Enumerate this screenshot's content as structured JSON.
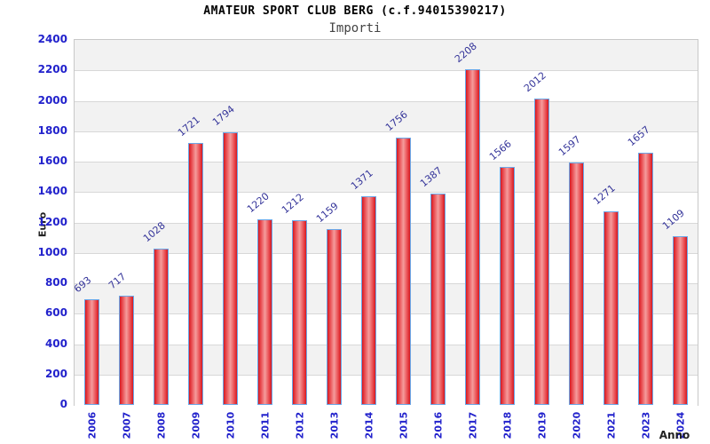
{
  "chart_data": {
    "type": "bar",
    "title": "AMATEUR SPORT CLUB BERG (c.f.94015390217)",
    "subtitle": "Importi",
    "xlabel": "Anno",
    "ylabel": "Euro",
    "categories": [
      "2006",
      "2007",
      "2008",
      "2009",
      "2010",
      "2011",
      "2012",
      "2013",
      "2014",
      "2015",
      "2016",
      "2017",
      "2018",
      "2019",
      "2020",
      "2021",
      "2023",
      "2024"
    ],
    "values": [
      693,
      717,
      1028,
      1721,
      1794,
      1220,
      1212,
      1159,
      1371,
      1756,
      1387,
      2208,
      1566,
      2012,
      1597,
      1271,
      1657,
      1109
    ],
    "ylim": [
      0,
      2400
    ],
    "ytick_step": 200,
    "y_ticks": [
      0,
      200,
      400,
      600,
      800,
      1000,
      1200,
      1400,
      1600,
      1800,
      2000,
      2200,
      2400
    ],
    "data_labels": true,
    "legend": "none",
    "grid": "horizontal-bands",
    "colors": {
      "bar_edge": "#d51820",
      "bar_center": "#f59c9c",
      "bar_border": "#6aa7e8",
      "tick_label": "#2222cc",
      "value_label": "#333399",
      "band_gray": "#f2f2f2",
      "band_white": "#ffffff",
      "gridline": "#d8d8d8",
      "plot_border": "#c8c8c8",
      "title": "#000000",
      "subtitle": "#444444",
      "axis_title": "#222222"
    }
  }
}
